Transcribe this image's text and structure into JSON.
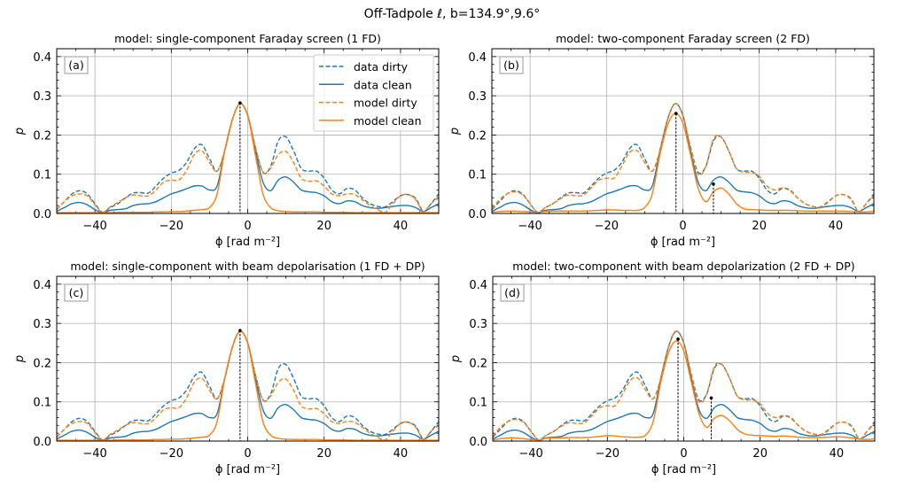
{
  "chart_data": [
    {
      "type": "line",
      "suptitle": "Off-Tadpole ℓ, b=134.9°,9.6°",
      "panels": [
        {
          "label": "(a)",
          "title": "model: single-component Faraday screen (1 FD)",
          "xlabel": "ϕ [rad m⁻²]",
          "ylabel": "p",
          "model_dirty": "m1_dirty",
          "model_clean": "m1_clean",
          "components": [
            {
              "phi": -2,
              "p": 0.282
            }
          ],
          "legend": true
        },
        {
          "label": "(b)",
          "title": "model: two-component Faraday screen (2 FD)",
          "xlabel": "ϕ [rad m⁻²]",
          "ylabel": "p",
          "model_dirty": "m2_dirty",
          "model_clean": "m2_clean",
          "components": [
            {
              "phi": -1.8,
              "p": 0.255
            },
            {
              "phi": 8,
              "p": 0.075
            }
          ],
          "legend": false
        },
        {
          "label": "(c)",
          "title": "model: single-component with beam depolarisation (1 FD + DP)",
          "xlabel": "ϕ [rad m⁻²]",
          "ylabel": "p",
          "model_dirty": "m1_dirty",
          "model_clean": "m1_clean",
          "components": [
            {
              "phi": -2,
              "p": 0.282
            }
          ],
          "legend": false
        },
        {
          "label": "(d)",
          "title": "model: two-component with beam depolarization (2 FD + DP)",
          "xlabel": "ϕ [rad m⁻²]",
          "ylabel": "p",
          "model_dirty": "m2_dirty",
          "model_clean": "m4_clean",
          "components": [
            {
              "phi": -1.5,
              "p": 0.26
            },
            {
              "phi": 7.2,
              "p": 0.11
            }
          ],
          "legend": false
        }
      ],
      "xlim": [
        -50,
        50
      ],
      "ylim": [
        0,
        0.42
      ],
      "xticks": [
        -40,
        -20,
        0,
        20,
        40
      ],
      "xtick_labels": [
        "−40",
        "−20",
        "0",
        "20",
        "40"
      ],
      "yticks": [
        0.0,
        0.1,
        0.2,
        0.3,
        0.4
      ],
      "ytick_labels": [
        "0.0",
        "0.1",
        "0.2",
        "0.3",
        "0.4"
      ],
      "grid": true,
      "legend_placement": "top-right",
      "legend": [
        {
          "name": "data dirty",
          "key": "data_dirty",
          "color": "#1f77b4",
          "dash": true
        },
        {
          "name": "data clean",
          "key": "data_clean",
          "color": "#1f77b4",
          "dash": false
        },
        {
          "name": "model dirty",
          "key": "model_dirty",
          "color": "#ff7f0e",
          "dash": true
        },
        {
          "name": "model clean",
          "key": "model_clean",
          "color": "#ff7f0e",
          "dash": false
        }
      ],
      "x": [
        -50,
        -48,
        -46,
        -44,
        -42,
        -40,
        -38,
        -36,
        -34,
        -32,
        -30,
        -28,
        -26,
        -24,
        -22,
        -20,
        -18,
        -16,
        -14,
        -12,
        -10,
        -8,
        -6,
        -4,
        -2,
        0,
        2,
        4,
        6,
        8,
        10,
        12,
        14,
        16,
        18,
        20,
        22,
        24,
        26,
        28,
        30,
        32,
        34,
        36,
        38,
        40,
        42,
        44,
        46,
        48,
        50
      ],
      "series": {
        "data_dirty": [
          0.01,
          0.03,
          0.05,
          0.058,
          0.05,
          0.025,
          0.003,
          0.015,
          0.025,
          0.04,
          0.052,
          0.053,
          0.052,
          0.07,
          0.09,
          0.103,
          0.11,
          0.13,
          0.165,
          0.175,
          0.14,
          0.108,
          0.16,
          0.24,
          0.28,
          0.25,
          0.17,
          0.105,
          0.12,
          0.185,
          0.195,
          0.16,
          0.115,
          0.108,
          0.108,
          0.09,
          0.06,
          0.05,
          0.064,
          0.06,
          0.04,
          0.025,
          0.018,
          0.017,
          0.03,
          0.045,
          0.048,
          0.038,
          0.005,
          0.025,
          0.05
        ],
        "data_clean": [
          0.005,
          0.015,
          0.025,
          0.028,
          0.022,
          0.01,
          0.002,
          0.008,
          0.01,
          0.012,
          0.02,
          0.024,
          0.025,
          0.03,
          0.04,
          0.05,
          0.056,
          0.063,
          0.07,
          0.07,
          0.06,
          0.07,
          0.16,
          0.24,
          0.28,
          0.25,
          0.16,
          0.08,
          0.058,
          0.085,
          0.093,
          0.08,
          0.06,
          0.055,
          0.053,
          0.045,
          0.03,
          0.025,
          0.032,
          0.03,
          0.02,
          0.015,
          0.013,
          0.015,
          0.018,
          0.02,
          0.02,
          0.015,
          0.005,
          0.015,
          0.025
        ],
        "m1_dirty": [
          0.01,
          0.03,
          0.045,
          0.05,
          0.045,
          0.022,
          0.003,
          0.017,
          0.028,
          0.04,
          0.047,
          0.045,
          0.045,
          0.06,
          0.08,
          0.085,
          0.085,
          0.11,
          0.15,
          0.16,
          0.13,
          0.108,
          0.16,
          0.24,
          0.28,
          0.25,
          0.17,
          0.105,
          0.115,
          0.15,
          0.158,
          0.13,
          0.09,
          0.082,
          0.083,
          0.07,
          0.05,
          0.045,
          0.05,
          0.048,
          0.035,
          0.02,
          0.01,
          0.003,
          0.025,
          0.045,
          0.048,
          0.035,
          0.005,
          0.025,
          0.04
        ],
        "m1_clean": [
          0.002,
          0.002,
          0.002,
          0.002,
          0.002,
          0.002,
          0.002,
          0.002,
          0.003,
          0.003,
          0.003,
          0.003,
          0.003,
          0.004,
          0.004,
          0.005,
          0.005,
          0.006,
          0.008,
          0.01,
          0.015,
          0.05,
          0.16,
          0.24,
          0.28,
          0.25,
          0.15,
          0.05,
          0.015,
          0.007,
          0.005,
          0.004,
          0.004,
          0.004,
          0.004,
          0.003,
          0.003,
          0.003,
          0.003,
          0.002,
          0.002,
          0.002,
          0.002,
          0.002,
          0.002,
          0.002,
          0.002,
          0.002,
          0.002,
          0.002,
          0.002
        ],
        "m2_dirty": [
          0.012,
          0.035,
          0.05,
          0.055,
          0.048,
          0.025,
          0.003,
          0.015,
          0.025,
          0.038,
          0.047,
          0.045,
          0.047,
          0.065,
          0.085,
          0.09,
          0.09,
          0.12,
          0.155,
          0.16,
          0.13,
          0.108,
          0.16,
          0.24,
          0.28,
          0.25,
          0.17,
          0.1,
          0.12,
          0.19,
          0.195,
          0.16,
          0.115,
          0.105,
          0.105,
          0.095,
          0.07,
          0.06,
          0.065,
          0.058,
          0.04,
          0.025,
          0.018,
          0.016,
          0.028,
          0.045,
          0.048,
          0.036,
          0.005,
          0.025,
          0.045
        ],
        "m2_clean": [
          0.003,
          0.005,
          0.006,
          0.006,
          0.005,
          0.004,
          0.003,
          0.005,
          0.006,
          0.006,
          0.006,
          0.006,
          0.006,
          0.007,
          0.008,
          0.009,
          0.009,
          0.008,
          0.008,
          0.008,
          0.015,
          0.05,
          0.15,
          0.225,
          0.255,
          0.23,
          0.15,
          0.065,
          0.03,
          0.055,
          0.065,
          0.05,
          0.025,
          0.012,
          0.01,
          0.009,
          0.008,
          0.008,
          0.008,
          0.008,
          0.007,
          0.006,
          0.006,
          0.006,
          0.006,
          0.006,
          0.006,
          0.005,
          0.004,
          0.004,
          0.006
        ],
        "m4_clean": [
          0.003,
          0.006,
          0.008,
          0.008,
          0.006,
          0.004,
          0.003,
          0.007,
          0.008,
          0.008,
          0.009,
          0.009,
          0.009,
          0.01,
          0.012,
          0.014,
          0.013,
          0.011,
          0.01,
          0.01,
          0.015,
          0.05,
          0.15,
          0.225,
          0.255,
          0.23,
          0.15,
          0.07,
          0.035,
          0.058,
          0.065,
          0.052,
          0.03,
          0.018,
          0.015,
          0.014,
          0.013,
          0.012,
          0.013,
          0.012,
          0.01,
          0.009,
          0.009,
          0.009,
          0.01,
          0.011,
          0.01,
          0.008,
          0.005,
          0.004,
          0.006
        ]
      }
    }
  ]
}
